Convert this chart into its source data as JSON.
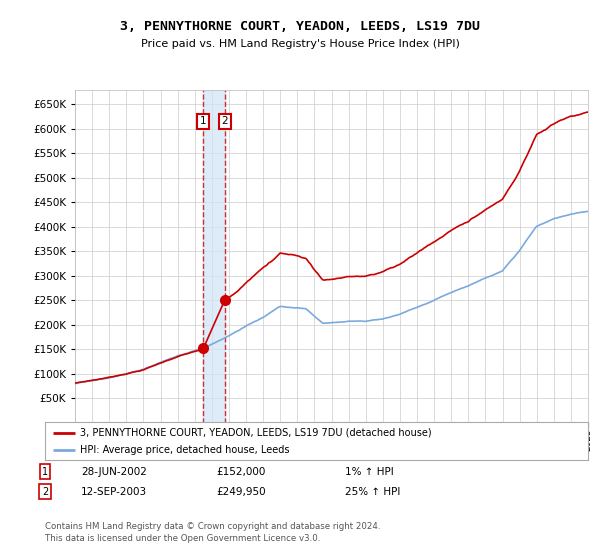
{
  "title": "3, PENNYTHORNE COURT, YEADON, LEEDS, LS19 7DU",
  "subtitle": "Price paid vs. HM Land Registry's House Price Index (HPI)",
  "legend_line1": "3, PENNYTHORNE COURT, YEADON, LEEDS, LS19 7DU (detached house)",
  "legend_line2": "HPI: Average price, detached house, Leeds",
  "transaction1_date": "28-JUN-2002",
  "transaction1_price": 152000,
  "transaction1_hpi": "1% ↑ HPI",
  "transaction2_date": "12-SEP-2003",
  "transaction2_price": 249950,
  "transaction2_hpi": "25% ↑ HPI",
  "footer": "Contains HM Land Registry data © Crown copyright and database right 2024.\nThis data is licensed under the Open Government Licence v3.0.",
  "hpi_color": "#7aaadd",
  "price_color": "#cc0000",
  "background_color": "#ffffff",
  "grid_color": "#cccccc",
  "ylim": [
    0,
    680000
  ],
  "yticks": [
    50000,
    100000,
    150000,
    200000,
    250000,
    300000,
    350000,
    400000,
    450000,
    500000,
    550000,
    600000,
    650000
  ],
  "year_start": 1995,
  "year_end": 2025
}
